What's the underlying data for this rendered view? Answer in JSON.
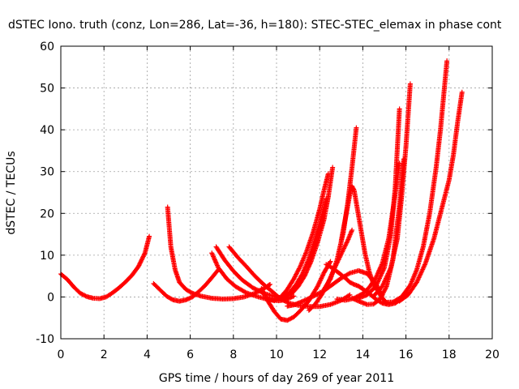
{
  "chart_data": {
    "type": "scatter",
    "title": "dSTEC Iono. truth (conz, Lon=286, Lat=-36, h=180): STEC-STEC_elemax in phase cont",
    "xlabel": "GPS time / hours of day 269 of year 2011",
    "ylabel": "dSTEC  / TECUs",
    "xlim": [
      0,
      20
    ],
    "ylim": [
      -10,
      60
    ],
    "x_ticks": [
      "0",
      "2",
      "4",
      "6",
      "8",
      "10",
      "12",
      "14",
      "16",
      "18",
      "20"
    ],
    "y_ticks": [
      "-10",
      "0",
      "10",
      "20",
      "30",
      "40",
      "50",
      "60"
    ],
    "grid": true,
    "marker": "plus",
    "color": "#ff0000",
    "series": [
      {
        "x": [
          0.0,
          0.3,
          0.6,
          0.9,
          1.2,
          1.5,
          1.8,
          2.1,
          2.4,
          2.7,
          3.0,
          3.3,
          3.6,
          3.9,
          4.1
        ],
        "y": [
          5.5,
          4.2,
          2.4,
          0.9,
          0.1,
          -0.3,
          -0.4,
          0.0,
          1.0,
          2.2,
          3.6,
          5.2,
          7.3,
          10.5,
          14.5
        ]
      },
      {
        "x": [
          4.3,
          4.6,
          4.9,
          5.2,
          5.5,
          5.8,
          6.1,
          6.4,
          6.7,
          7.0,
          7.3
        ],
        "y": [
          3.2,
          1.7,
          0.2,
          -0.7,
          -1.0,
          -0.7,
          0.0,
          1.3,
          2.8,
          4.6,
          6.5
        ]
      },
      {
        "x": [
          4.95,
          5.1,
          5.3,
          5.5,
          5.8,
          6.1,
          6.5,
          7.0,
          7.5,
          8.0,
          8.5,
          9.0,
          9.5,
          9.7
        ],
        "y": [
          21.5,
          12.0,
          6.5,
          3.5,
          1.8,
          0.9,
          0.2,
          -0.3,
          -0.5,
          -0.4,
          0.0,
          0.9,
          2.3,
          3.0
        ]
      },
      {
        "x": [
          7.0,
          7.3,
          7.7,
          8.1,
          8.6,
          9.1,
          9.6,
          10.1,
          10.4,
          10.8
        ],
        "y": [
          10.5,
          7.0,
          4.3,
          2.5,
          1.0,
          0.1,
          -0.6,
          -0.9,
          -0.7,
          0.2
        ]
      },
      {
        "x": [
          7.2,
          7.6,
          8.0,
          8.4,
          8.9,
          9.4,
          9.9,
          10.3,
          10.5
        ],
        "y": [
          12.0,
          8.8,
          6.2,
          4.1,
          2.2,
          0.9,
          0.1,
          -0.3,
          -0.2
        ]
      },
      {
        "x": [
          7.8,
          8.2,
          8.6,
          9.0,
          9.4,
          9.8,
          10.2,
          10.6,
          11.0,
          11.5,
          12.0,
          12.5,
          13.0,
          13.4
        ],
        "y": [
          12.0,
          9.5,
          7.3,
          5.0,
          3.0,
          1.3,
          -0.5,
          -1.5,
          -2.0,
          -2.3,
          -2.3,
          -1.8,
          -0.8,
          0.5
        ]
      },
      {
        "x": [
          9.3,
          9.6,
          9.9,
          10.2,
          10.5,
          10.8,
          11.1,
          11.5,
          11.9,
          12.2,
          12.5
        ],
        "y": [
          2.0,
          -1.0,
          -3.5,
          -5.3,
          -5.6,
          -4.8,
          -3.3,
          -0.9,
          2.5,
          5.8,
          8.5
        ]
      },
      {
        "x": [
          9.6,
          9.9,
          10.2,
          10.5,
          10.8,
          11.1,
          11.4,
          11.7,
          12.0,
          12.2,
          12.4
        ],
        "y": [
          -0.5,
          -0.9,
          0.0,
          1.8,
          4.3,
          7.3,
          11.0,
          15.5,
          21.0,
          25.5,
          29.5
        ]
      },
      {
        "x": [
          10.0,
          10.3,
          10.6,
          10.9,
          11.2,
          11.5,
          11.8,
          12.1,
          12.3
        ],
        "y": [
          -0.3,
          -0.1,
          1.0,
          2.9,
          5.5,
          9.2,
          14.0,
          19.5,
          23.5
        ]
      },
      {
        "x": [
          10.4,
          10.7,
          11.0,
          11.3,
          11.6,
          11.9,
          12.2,
          12.4,
          12.6
        ],
        "y": [
          0.0,
          0.8,
          2.5,
          5.0,
          8.5,
          13.0,
          18.5,
          24.0,
          31.0
        ]
      },
      {
        "x": [
          10.5,
          10.8,
          11.1,
          11.4,
          11.8,
          12.2,
          12.6,
          13.0,
          13.4,
          13.8,
          14.2,
          14.6,
          14.9
        ],
        "y": [
          -2.2,
          -1.9,
          -1.3,
          -0.6,
          0.4,
          1.5,
          3.0,
          4.5,
          5.7,
          6.3,
          5.6,
          3.2,
          0.3
        ]
      },
      {
        "x": [
          11.5,
          11.8,
          12.1,
          12.4,
          12.7,
          13.0,
          13.3,
          13.5
        ],
        "y": [
          -3.2,
          -1.7,
          0.6,
          3.5,
          7.0,
          10.3,
          13.5,
          16.0
        ]
      },
      {
        "x": [
          12.3,
          12.6,
          12.9,
          13.2,
          13.4,
          13.6,
          13.8,
          14.0,
          14.3,
          14.6,
          14.9,
          15.2,
          15.5,
          15.8,
          16.1
        ],
        "y": [
          7.8,
          6.9,
          5.7,
          4.5,
          3.5,
          3.0,
          2.6,
          1.9,
          0.8,
          -0.5,
          -1.5,
          -1.8,
          -1.5,
          -0.4,
          1.0
        ]
      },
      {
        "x": [
          12.2,
          12.5,
          12.8,
          13.1,
          13.3,
          13.5,
          13.7
        ],
        "y": [
          1.8,
          4.3,
          8.8,
          15.5,
          22.5,
          31.0,
          40.5
        ]
      },
      {
        "x": [
          13.0,
          13.2,
          13.4,
          13.5,
          13.6,
          13.7,
          13.9,
          14.1,
          14.3,
          14.5,
          14.8,
          15.1
        ],
        "y": [
          13.5,
          19.0,
          24.5,
          26.5,
          25.5,
          22.5,
          16.5,
          10.5,
          6.0,
          3.0,
          0.5,
          -1.5
        ]
      },
      {
        "x": [
          12.8,
          13.2,
          13.6,
          14.0,
          14.3,
          14.6,
          14.9,
          15.2,
          15.5,
          15.7
        ],
        "y": [
          -0.5,
          -0.8,
          -0.3,
          0.8,
          2.3,
          4.5,
          8.0,
          14.0,
          24.5,
          32.0
        ]
      },
      {
        "x": [
          13.5,
          13.9,
          14.2,
          14.5,
          14.8,
          15.1,
          15.4,
          15.7,
          15.9
        ],
        "y": [
          -0.3,
          -1.2,
          -1.8,
          -1.7,
          -0.5,
          2.5,
          9.0,
          22.0,
          33.0
        ]
      },
      {
        "x": [
          13.8,
          14.2,
          14.6,
          15.0,
          15.3,
          15.5,
          15.7
        ],
        "y": [
          -0.3,
          0.5,
          2.5,
          7.0,
          15.0,
          26.0,
          45.0
        ]
      },
      {
        "x": [
          14.5,
          14.9,
          15.3,
          15.6,
          15.8,
          16.0,
          16.2
        ],
        "y": [
          0.2,
          2.5,
          7.0,
          14.0,
          24.0,
          36.0,
          51.0
        ]
      },
      {
        "x": [
          15.0,
          15.4,
          15.8,
          16.2,
          16.5,
          16.8,
          17.1,
          17.4,
          17.6,
          17.9
        ],
        "y": [
          -1.3,
          -1.2,
          0.0,
          2.8,
          6.5,
          12.0,
          20.0,
          31.0,
          40.0,
          56.5
        ]
      },
      {
        "x": [
          15.7,
          16.1,
          16.5,
          16.9,
          17.3,
          17.7,
          18.0,
          18.2,
          18.4,
          18.6
        ],
        "y": [
          -1.0,
          0.5,
          3.5,
          8.0,
          14.0,
          22.0,
          28.0,
          34.0,
          42.0,
          49.0
        ]
      }
    ]
  }
}
